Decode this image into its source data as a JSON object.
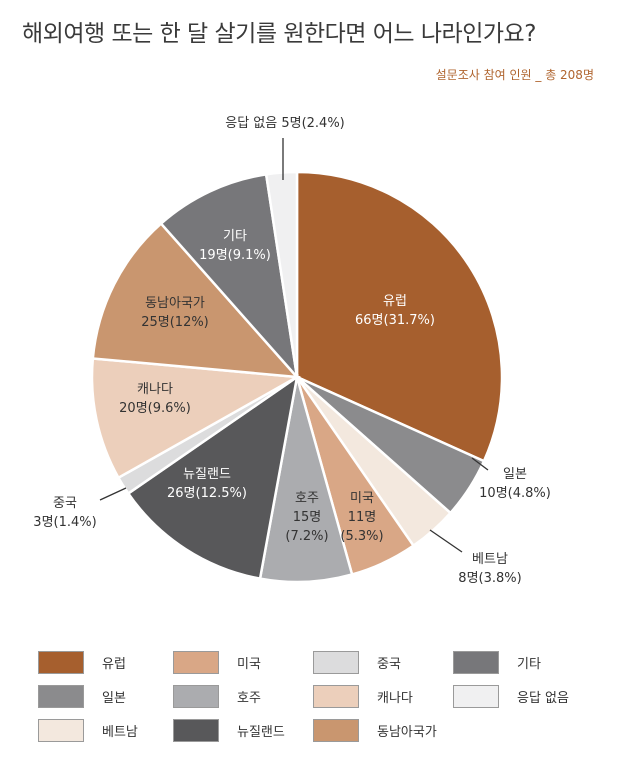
{
  "title": "해외여행 또는 한 달 살기를 원한다면 어느 나라인가요?",
  "subtitle": "설문조사 참여 인원 _ 총 208명",
  "chart_data": {
    "type": "pie",
    "title": "해외여행 또는 한 달 살기를 원한다면 어느 나라인가요?",
    "subtitle": "설문조사 참여 인원 _ 총 208명",
    "slices": [
      {
        "name": "유럽",
        "value": 66,
        "pct": "31.7%",
        "color": "#a65f2e",
        "label_lines": [
          "유럽",
          "66명(31.7%)"
        ],
        "text_color": "#ffffff"
      },
      {
        "name": "일본",
        "value": 10,
        "pct": "4.8%",
        "color": "#8b8b8d",
        "label_lines": [
          "일본",
          "10명(4.8%)"
        ],
        "text_color": "#333333"
      },
      {
        "name": "베트남",
        "value": 8,
        "pct": "3.8%",
        "color": "#f3e8de",
        "label_lines": [
          "베트남",
          "8명(3.8%)"
        ],
        "text_color": "#333333"
      },
      {
        "name": "미국",
        "value": 11,
        "pct": "5.3%",
        "color": "#d9a786",
        "label_lines": [
          "미국",
          "11명",
          "(5.3%)"
        ],
        "text_color": "#333333"
      },
      {
        "name": "호주",
        "value": 15,
        "pct": "7.2%",
        "color": "#abacaf",
        "label_lines": [
          "호주",
          "15명",
          "(7.2%)"
        ],
        "text_color": "#333333"
      },
      {
        "name": "뉴질랜드",
        "value": 26,
        "pct": "12.5%",
        "color": "#58585a",
        "label_lines": [
          "뉴질랜드",
          "26명(12.5%)"
        ],
        "text_color": "#ffffff"
      },
      {
        "name": "중국",
        "value": 3,
        "pct": "1.4%",
        "color": "#dcdcdd",
        "label_lines": [
          "중국",
          "3명(1.4%)"
        ],
        "text_color": "#333333"
      },
      {
        "name": "캐나다",
        "value": 20,
        "pct": "9.6%",
        "color": "#eccfbb",
        "label_lines": [
          "캐나다",
          "20명(9.6%)"
        ],
        "text_color": "#333333"
      },
      {
        "name": "동남아국가",
        "value": 25,
        "pct": "12%",
        "color": "#c9966f",
        "label_lines": [
          "동남아국가",
          "25명(12%)"
        ],
        "text_color": "#333333"
      },
      {
        "name": "기타",
        "value": 19,
        "pct": "9.1%",
        "color": "#77777a",
        "label_lines": [
          "기타",
          "19명(9.1%)"
        ],
        "text_color": "#ffffff"
      },
      {
        "name": "응답 없음",
        "value": 5,
        "pct": "2.4%",
        "color": "#f0f0f1",
        "label_lines": [
          "응답 없음 5명(2.4%)"
        ],
        "text_color": "#333333"
      }
    ],
    "legend": [
      {
        "name": "유럽",
        "color": "#a65f2e"
      },
      {
        "name": "미국",
        "color": "#d9a786"
      },
      {
        "name": "중국",
        "color": "#dcdcdd"
      },
      {
        "name": "기타",
        "color": "#77777a"
      },
      {
        "name": "일본",
        "color": "#8b8b8d"
      },
      {
        "name": "호주",
        "color": "#abacaf"
      },
      {
        "name": "캐나다",
        "color": "#eccfbb"
      },
      {
        "name": "응답 없음",
        "color": "#f0f0f1"
      },
      {
        "name": "베트남",
        "color": "#f3e8de"
      },
      {
        "name": "뉴질랜드",
        "color": "#58585a"
      },
      {
        "name": "동남아국가",
        "color": "#c9966f"
      }
    ],
    "legend_position": "bottom"
  }
}
